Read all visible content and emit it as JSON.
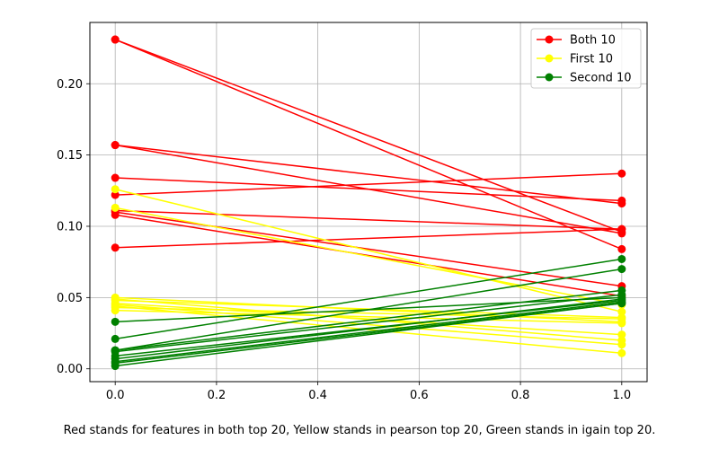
{
  "chart_data": {
    "type": "line",
    "caption": "Red stands for features in both top 20, Yellow stands in pearson top 20, Green stands in igain top 20.",
    "xlim": [
      -0.05,
      1.05
    ],
    "ylim": [
      -0.009,
      0.243
    ],
    "x_ticks": [
      0.0,
      0.2,
      0.4,
      0.6,
      0.8,
      1.0
    ],
    "x_tick_labels": [
      "0.0",
      "0.2",
      "0.4",
      "0.6",
      "0.8",
      "1.0"
    ],
    "y_ticks": [
      0.0,
      0.05,
      0.1,
      0.15,
      0.2
    ],
    "y_tick_labels": [
      "0.00",
      "0.05",
      "0.10",
      "0.15",
      "0.20"
    ],
    "grid": true,
    "legend_position": "top-right",
    "groups": [
      {
        "name": "Both 10",
        "color": "#ff0000",
        "lines": [
          [
            0.231,
            0.084
          ],
          [
            0.231,
            0.096
          ],
          [
            0.157,
            0.116
          ],
          [
            0.157,
            0.095
          ],
          [
            0.134,
            0.118
          ],
          [
            0.122,
            0.137
          ],
          [
            0.111,
            0.098
          ],
          [
            0.11,
            0.058
          ],
          [
            0.108,
            0.051
          ],
          [
            0.085,
            0.098
          ]
        ]
      },
      {
        "name": "First 10",
        "color": "#ffff00",
        "lines": [
          [
            0.126,
            0.04
          ],
          [
            0.113,
            0.045
          ],
          [
            0.05,
            0.033
          ],
          [
            0.049,
            0.02
          ],
          [
            0.048,
            0.036
          ],
          [
            0.046,
            0.024
          ],
          [
            0.045,
            0.017
          ],
          [
            0.044,
            0.011
          ],
          [
            0.043,
            0.035
          ],
          [
            0.041,
            0.032
          ]
        ]
      },
      {
        "name": "Second 10",
        "color": "#008000",
        "lines": [
          [
            0.033,
            0.05
          ],
          [
            0.021,
            0.077
          ],
          [
            0.013,
            0.07
          ],
          [
            0.013,
            0.055
          ],
          [
            0.012,
            0.052
          ],
          [
            0.009,
            0.048
          ],
          [
            0.007,
            0.049
          ],
          [
            0.005,
            0.047
          ],
          [
            0.004,
            0.046
          ],
          [
            0.002,
            0.046
          ]
        ]
      }
    ]
  }
}
